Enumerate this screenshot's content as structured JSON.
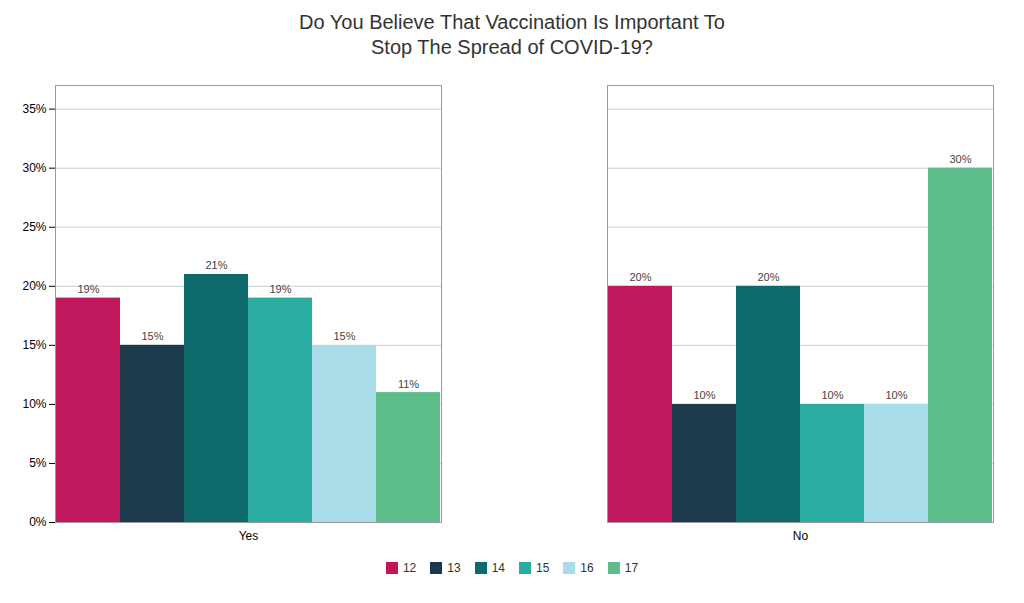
{
  "chart_data": {
    "type": "bar",
    "title": "Do You Believe That Vaccination Is Important To\nStop The Spread of COVID-19?",
    "categories": [
      "Yes",
      "No"
    ],
    "series": [
      {
        "name": "12",
        "color": "#C0175D",
        "values": [
          19,
          20
        ],
        "value_labels": [
          "19%",
          "20%"
        ]
      },
      {
        "name": "13",
        "color": "#1B3A4B",
        "values": [
          15,
          10
        ],
        "value_labels": [
          "15%",
          "10%"
        ]
      },
      {
        "name": "14",
        "color": "#0E6B6B",
        "values": [
          21,
          20
        ],
        "value_labels": [
          "21%",
          "20%"
        ]
      },
      {
        "name": "15",
        "color": "#2AADA0",
        "values": [
          19,
          10
        ],
        "value_labels": [
          "19%",
          "10%"
        ]
      },
      {
        "name": "16",
        "color": "#A8DCE8",
        "values": [
          15,
          10
        ],
        "value_labels": [
          "15%",
          "10%"
        ]
      },
      {
        "name": "17",
        "color": "#5DBD8A",
        "values": [
          11,
          30
        ],
        "value_labels": [
          "11%",
          "30%"
        ]
      }
    ],
    "ylim": [
      0,
      37
    ],
    "yticks": [
      {
        "value": 0,
        "label": "0%"
      },
      {
        "value": 5,
        "label": "5%"
      },
      {
        "value": 10,
        "label": "10%"
      },
      {
        "value": 15,
        "label": "15%"
      },
      {
        "value": 20,
        "label": "20%"
      },
      {
        "value": 25,
        "label": "25%"
      },
      {
        "value": 30,
        "label": "30%"
      },
      {
        "value": 35,
        "label": "35%"
      }
    ],
    "grid": true,
    "legend": "bottom",
    "data_labels": true
  }
}
